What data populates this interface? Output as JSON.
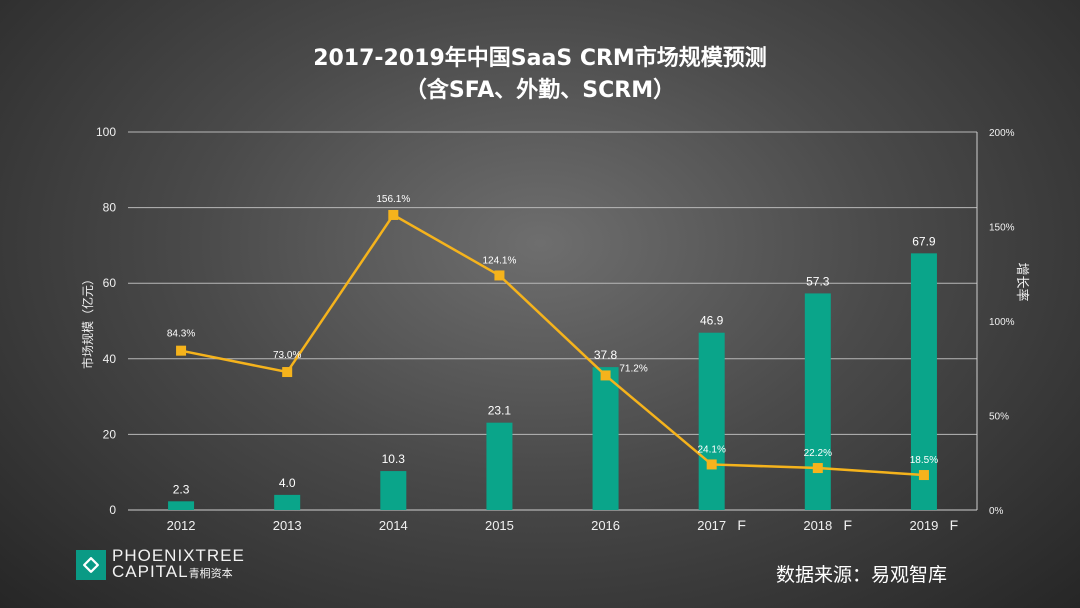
{
  "title": {
    "line1": "2017-2019年中国SaaS CRM市场规模预测",
    "line2": "（含SFA、外勤、SCRM）"
  },
  "chart_data": {
    "type": "bar+line",
    "categories": [
      "2012",
      "2013",
      "2014",
      "2015",
      "2016",
      "2017",
      "2018",
      "2019"
    ],
    "forecast_flags": [
      "",
      "",
      "",
      "",
      "",
      "F",
      "F",
      "F"
    ],
    "series": [
      {
        "name": "市场规模（亿元）",
        "type": "bar",
        "axis": "left",
        "color": "#0aa58a",
        "values": [
          2.3,
          4.0,
          10.3,
          23.1,
          37.8,
          46.9,
          57.3,
          67.9
        ],
        "labels": [
          "2.3",
          "4.0",
          "10.3",
          "23.1",
          "37.8",
          "46.9",
          "57.3",
          "67.9"
        ]
      },
      {
        "name": "增长率",
        "type": "line",
        "axis": "right",
        "color": "#f5b31c",
        "values": [
          84.3,
          73.0,
          156.1,
          124.1,
          71.2,
          24.1,
          22.2,
          18.5
        ],
        "labels": [
          "84.3%",
          "73.0%",
          "156.1%",
          "124.1%",
          "71.2%",
          "24.1%",
          "22.2%",
          "18.5%"
        ]
      }
    ],
    "ylabel": "市场规模（亿元）",
    "y2label": "增长率",
    "ylim": [
      0,
      100
    ],
    "y2lim": [
      0,
      200
    ],
    "yticks": [
      "0",
      "20",
      "40",
      "60",
      "80",
      "100"
    ],
    "y2ticks": [
      "0%",
      "50%",
      "100%",
      "150%",
      "200%"
    ],
    "grid": true
  },
  "brand": {
    "line1": "PHOENIXTREE",
    "line2": "CAPITAL",
    "line2_cn": "青桐资本"
  },
  "source": "数据来源：易观智库"
}
